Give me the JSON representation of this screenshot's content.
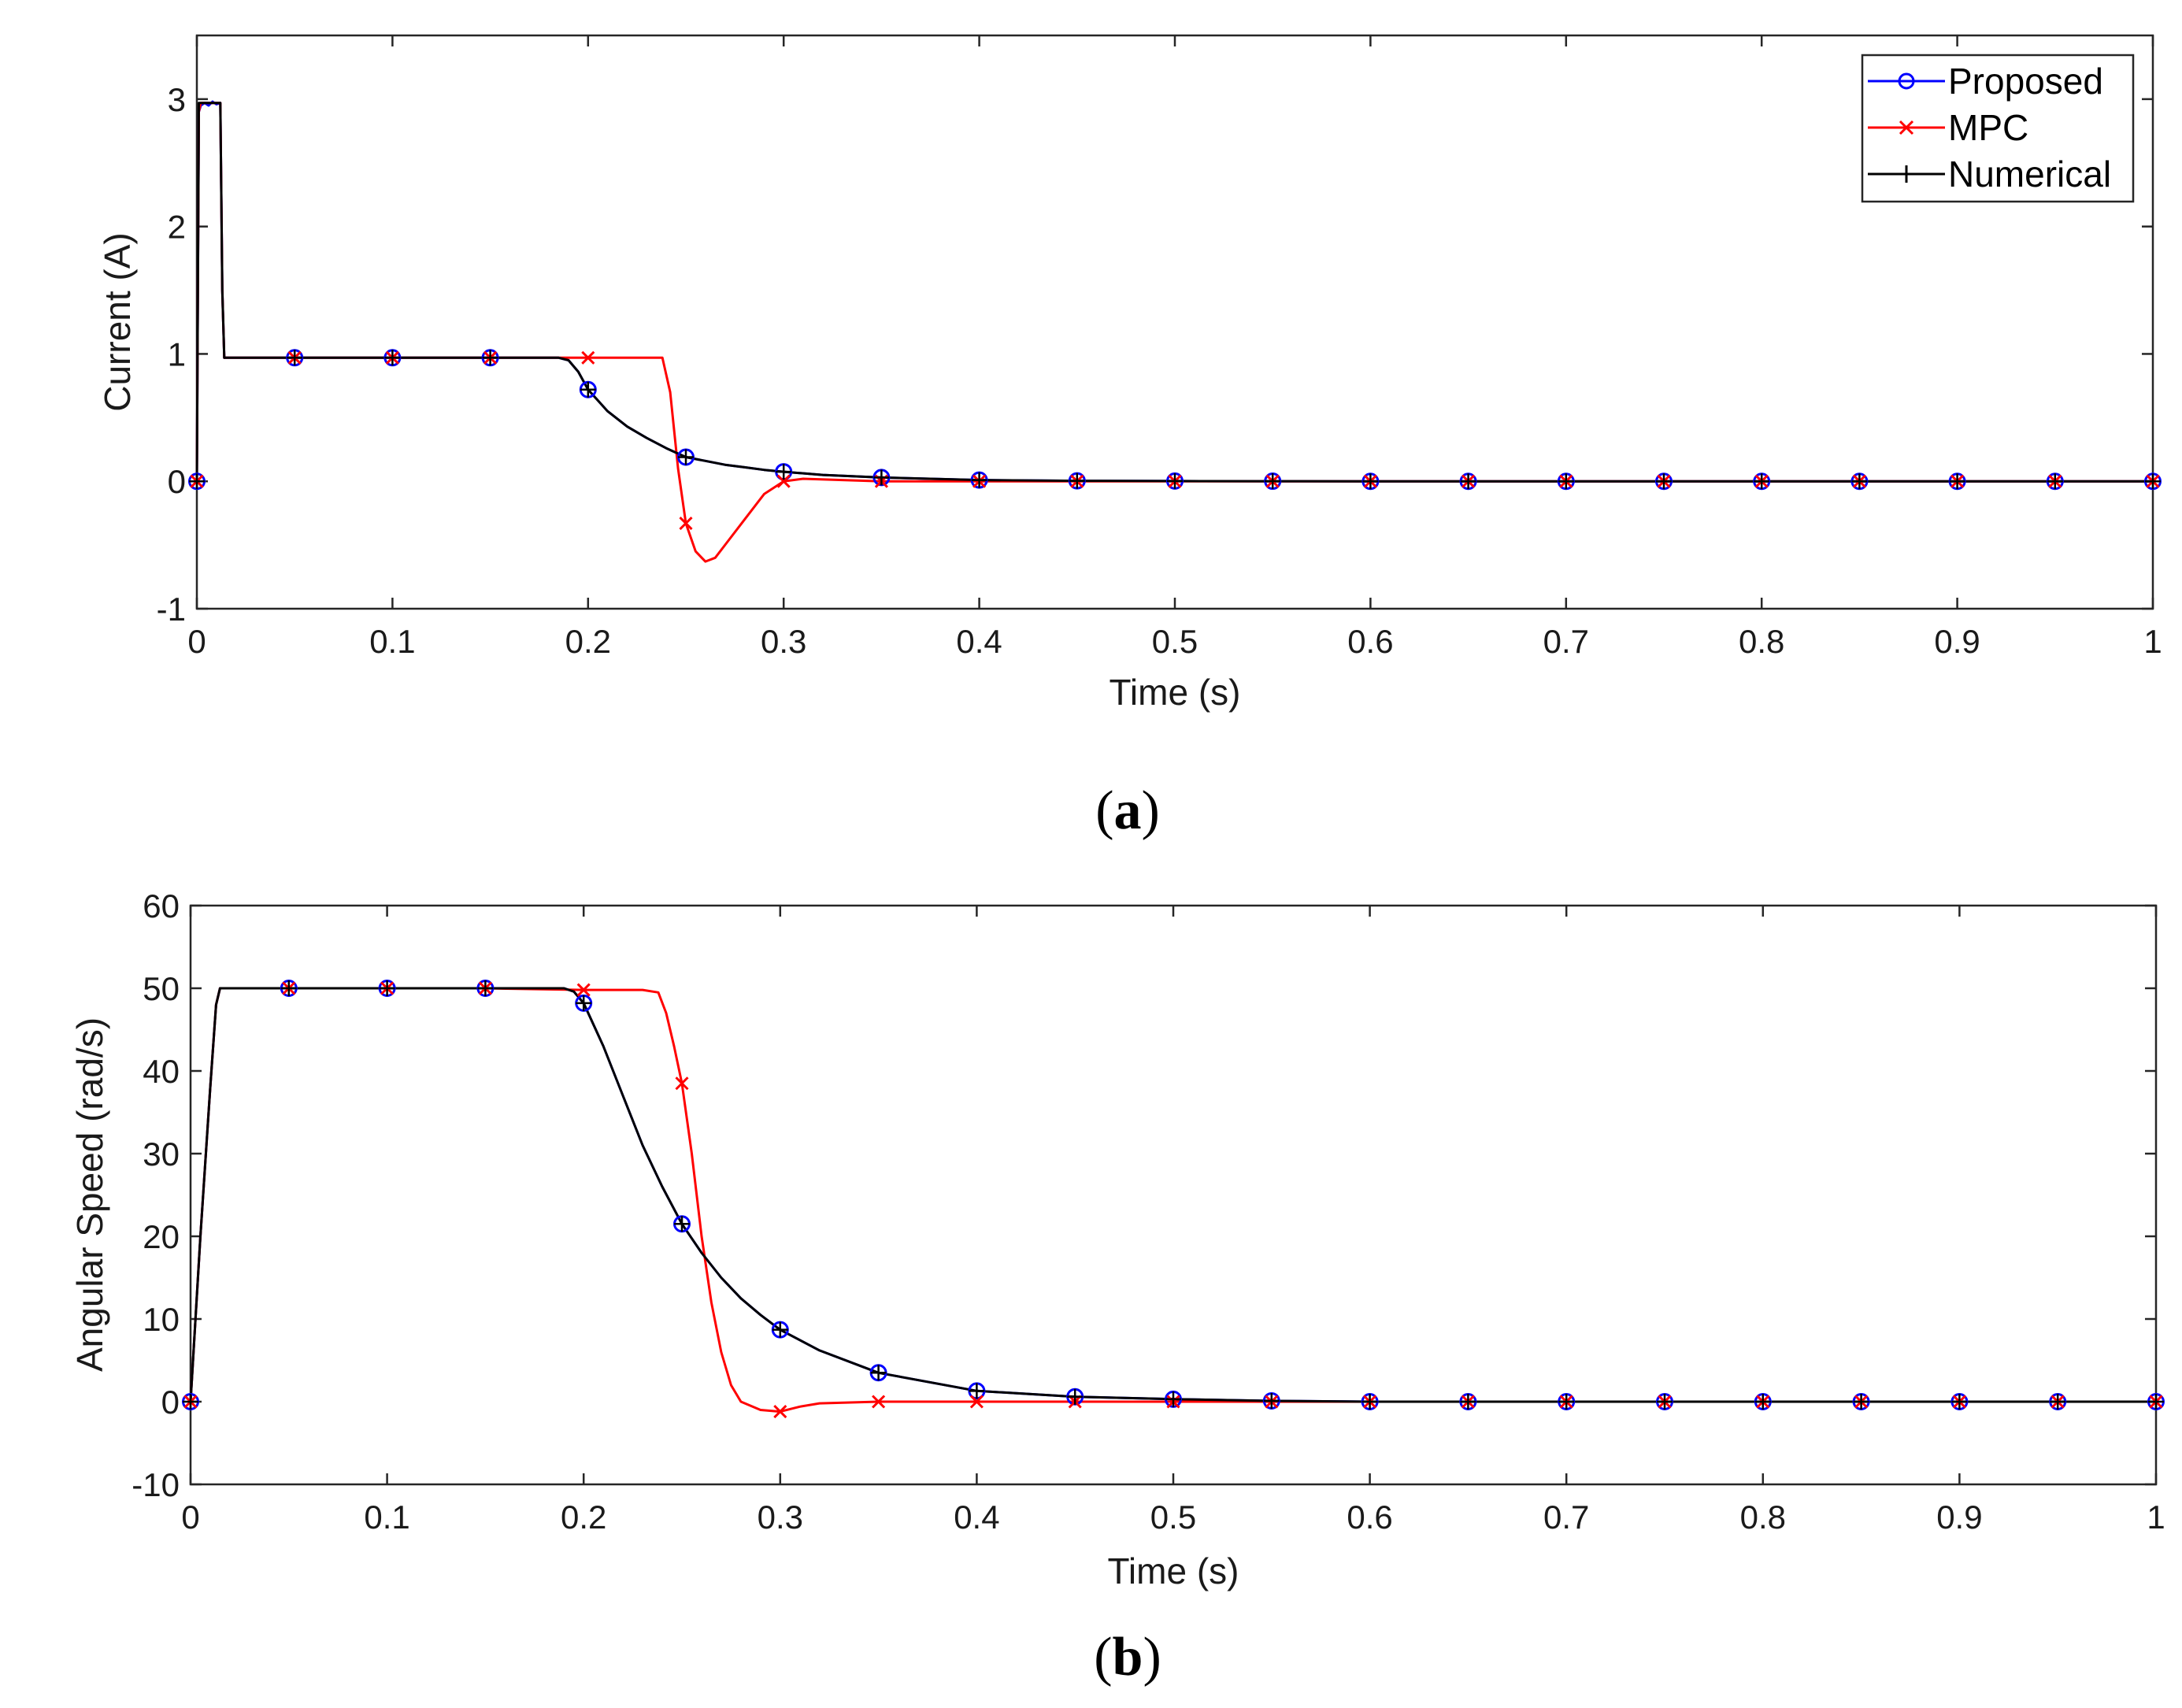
{
  "chart_data": [
    {
      "type": "line",
      "panel": "a",
      "caption_letter": "a",
      "xlabel": "Time (s)",
      "ylabel": "Current (A)",
      "xlim": [
        0,
        1
      ],
      "ylim": [
        -1,
        3.5
      ],
      "xticks": [
        0,
        0.1,
        0.2,
        0.3,
        0.4,
        0.5,
        0.6,
        0.7,
        0.8,
        0.9,
        1
      ],
      "xtick_labels": [
        "0",
        "0.1",
        "0.2",
        "0.3",
        "0.4",
        "0.5",
        "0.6",
        "0.7",
        "0.8",
        "0.9",
        "1"
      ],
      "yticks": [
        -1,
        0,
        1,
        2,
        3
      ],
      "ytick_labels": [
        "-1",
        "0",
        "1",
        "2",
        "3"
      ],
      "legend": {
        "position": "top-right",
        "entries": [
          "Proposed",
          "MPC",
          "Numerical"
        ]
      },
      "series": [
        {
          "name": "Proposed",
          "color": "#0000ff",
          "marker": "circle",
          "x": [
            0,
            0.001,
            0.002,
            0.004,
            0.006,
            0.008,
            0.01,
            0.012,
            0.013,
            0.014,
            0.05,
            0.1,
            0.15,
            0.185,
            0.19,
            0.195,
            0.2,
            0.21,
            0.22,
            0.23,
            0.24,
            0.25,
            0.26,
            0.27,
            0.28,
            0.29,
            0.3,
            0.32,
            0.35,
            0.4,
            0.45,
            0.5,
            0.55,
            0.6,
            0.65,
            0.7,
            0.75,
            0.8,
            0.85,
            0.9,
            0.95,
            1.0
          ],
          "y": [
            0,
            2.9,
            2.95,
            2.97,
            2.95,
            2.98,
            2.96,
            2.97,
            1.5,
            0.97,
            0.97,
            0.97,
            0.97,
            0.97,
            0.95,
            0.86,
            0.72,
            0.55,
            0.43,
            0.34,
            0.26,
            0.19,
            0.16,
            0.13,
            0.11,
            0.09,
            0.075,
            0.05,
            0.03,
            0.01,
            0.004,
            0.002,
            0.001,
            0,
            0,
            0,
            0,
            0,
            0,
            0,
            0,
            0
          ]
        },
        {
          "name": "MPC",
          "color": "#ff0000",
          "marker": "x",
          "x": [
            0,
            0.001,
            0.002,
            0.004,
            0.006,
            0.008,
            0.01,
            0.012,
            0.013,
            0.014,
            0.05,
            0.1,
            0.15,
            0.2,
            0.22,
            0.238,
            0.242,
            0.246,
            0.25,
            0.255,
            0.26,
            0.265,
            0.27,
            0.28,
            0.29,
            0.3,
            0.31,
            0.35,
            0.4,
            0.45,
            0.5,
            0.55,
            0.6,
            0.65,
            0.7,
            0.75,
            0.8,
            0.85,
            0.9,
            0.95,
            1.0
          ],
          "y": [
            0,
            2.9,
            2.97,
            2.97,
            2.97,
            2.97,
            2.97,
            2.97,
            1.5,
            0.97,
            0.97,
            0.97,
            0.97,
            0.97,
            0.97,
            0.97,
            0.7,
            0.1,
            -0.33,
            -0.55,
            -0.63,
            -0.6,
            -0.5,
            -0.3,
            -0.1,
            0,
            0.02,
            0,
            0,
            0,
            0,
            0,
            0,
            0,
            0,
            0,
            0,
            0,
            0,
            0,
            0
          ]
        },
        {
          "name": "Numerical",
          "color": "#000000",
          "marker": "plus",
          "x": [
            0,
            0.001,
            0.002,
            0.004,
            0.006,
            0.008,
            0.01,
            0.012,
            0.013,
            0.014,
            0.05,
            0.1,
            0.15,
            0.185,
            0.19,
            0.195,
            0.2,
            0.21,
            0.22,
            0.23,
            0.24,
            0.25,
            0.26,
            0.27,
            0.28,
            0.29,
            0.3,
            0.32,
            0.35,
            0.4,
            0.45,
            0.5,
            0.55,
            0.6,
            0.65,
            0.7,
            0.75,
            0.8,
            0.85,
            0.9,
            0.95,
            1.0
          ],
          "y": [
            0,
            2.97,
            2.97,
            2.97,
            2.97,
            2.97,
            2.97,
            2.97,
            1.5,
            0.97,
            0.97,
            0.97,
            0.97,
            0.97,
            0.95,
            0.86,
            0.72,
            0.55,
            0.43,
            0.34,
            0.26,
            0.19,
            0.16,
            0.13,
            0.11,
            0.09,
            0.075,
            0.05,
            0.03,
            0.01,
            0.004,
            0.002,
            0.001,
            0,
            0,
            0,
            0,
            0,
            0,
            0,
            0,
            0
          ]
        }
      ],
      "markers": {
        "Proposed": {
          "x": [
            0,
            0.05,
            0.1,
            0.15,
            0.2,
            0.25,
            0.3,
            0.35,
            0.4,
            0.45,
            0.5,
            0.55,
            0.6,
            0.65,
            0.7,
            0.75,
            0.8,
            0.85,
            0.9,
            0.95,
            1.0
          ],
          "y": [
            0,
            0.97,
            0.97,
            0.97,
            0.72,
            0.19,
            0.075,
            0.03,
            0.01,
            0.004,
            0.002,
            0.001,
            0,
            0,
            0,
            0,
            0,
            0,
            0,
            0,
            0
          ]
        },
        "MPC": {
          "x": [
            0,
            0.05,
            0.1,
            0.15,
            0.2,
            0.25,
            0.3,
            0.35,
            0.4,
            0.45,
            0.5,
            0.55,
            0.6,
            0.65,
            0.7,
            0.75,
            0.8,
            0.85,
            0.9,
            0.95,
            1.0
          ],
          "y": [
            0,
            0.97,
            0.97,
            0.97,
            0.97,
            -0.33,
            0,
            0,
            0,
            0,
            0,
            0,
            0,
            0,
            0,
            0,
            0,
            0,
            0,
            0,
            0
          ]
        },
        "Numerical": {
          "x": [
            0,
            0.05,
            0.1,
            0.15,
            0.2,
            0.25,
            0.3,
            0.35,
            0.4,
            0.45,
            0.5,
            0.55,
            0.6,
            0.65,
            0.7,
            0.75,
            0.8,
            0.85,
            0.9,
            0.95,
            1.0
          ],
          "y": [
            0,
            0.97,
            0.97,
            0.97,
            0.72,
            0.19,
            0.075,
            0.03,
            0.01,
            0.004,
            0.002,
            0.001,
            0,
            0,
            0,
            0,
            0,
            0,
            0,
            0,
            0
          ]
        }
      }
    },
    {
      "type": "line",
      "panel": "b",
      "caption_letter": "b",
      "xlabel": "Time (s)",
      "ylabel": "Angular Speed (rad/s)",
      "xlim": [
        0,
        1
      ],
      "ylim": [
        -10,
        60
      ],
      "xticks": [
        0,
        0.1,
        0.2,
        0.3,
        0.4,
        0.5,
        0.6,
        0.7,
        0.8,
        0.9,
        1
      ],
      "xtick_labels": [
        "0",
        "0.1",
        "0.2",
        "0.3",
        "0.4",
        "0.5",
        "0.6",
        "0.7",
        "0.8",
        "0.9",
        "1"
      ],
      "yticks": [
        -10,
        0,
        10,
        20,
        30,
        40,
        50,
        60
      ],
      "ytick_labels": [
        "-10",
        "0",
        "10",
        "20",
        "30",
        "40",
        "50",
        "60"
      ],
      "series": [
        {
          "name": "Proposed",
          "color": "#0000ff",
          "marker": "circle",
          "x": [
            0,
            0.005,
            0.01,
            0.013,
            0.015,
            0.05,
            0.1,
            0.15,
            0.19,
            0.195,
            0.2,
            0.21,
            0.22,
            0.23,
            0.24,
            0.25,
            0.26,
            0.27,
            0.28,
            0.29,
            0.3,
            0.32,
            0.35,
            0.4,
            0.45,
            0.5,
            0.55,
            0.6,
            0.65,
            0.7,
            0.75,
            0.8,
            0.85,
            0.9,
            0.95,
            1.0
          ],
          "y": [
            0,
            20,
            38,
            48,
            50,
            50,
            50,
            50,
            50,
            49.6,
            48.2,
            43,
            37,
            31,
            26,
            21.5,
            18,
            15,
            12.5,
            10.5,
            8.7,
            6.2,
            3.5,
            1.3,
            0.6,
            0.3,
            0.1,
            0,
            0,
            0,
            0,
            0,
            0,
            0,
            0,
            0
          ]
        },
        {
          "name": "MPC",
          "color": "#ff0000",
          "marker": "x",
          "x": [
            0,
            0.005,
            0.01,
            0.013,
            0.015,
            0.05,
            0.1,
            0.15,
            0.2,
            0.23,
            0.238,
            0.242,
            0.246,
            0.25,
            0.255,
            0.26,
            0.265,
            0.27,
            0.275,
            0.28,
            0.29,
            0.3,
            0.31,
            0.32,
            0.35,
            0.4,
            0.45,
            0.5,
            0.55,
            0.6,
            0.65,
            0.7,
            0.75,
            0.8,
            0.85,
            0.9,
            0.95,
            1.0
          ],
          "y": [
            0,
            20,
            38,
            48,
            50,
            50,
            50,
            50,
            49.8,
            49.8,
            49.5,
            47,
            43,
            38.5,
            30,
            20,
            12,
            6,
            2,
            0,
            -1,
            -1.2,
            -0.6,
            -0.2,
            0,
            0,
            0,
            0,
            0,
            0,
            0,
            0,
            0,
            0,
            0,
            0,
            0,
            0
          ]
        },
        {
          "name": "Numerical",
          "color": "#000000",
          "marker": "plus",
          "x": [
            0,
            0.005,
            0.01,
            0.013,
            0.015,
            0.05,
            0.1,
            0.15,
            0.19,
            0.195,
            0.2,
            0.21,
            0.22,
            0.23,
            0.24,
            0.25,
            0.26,
            0.27,
            0.28,
            0.29,
            0.3,
            0.32,
            0.35,
            0.4,
            0.45,
            0.5,
            0.55,
            0.6,
            0.65,
            0.7,
            0.75,
            0.8,
            0.85,
            0.9,
            0.95,
            1.0
          ],
          "y": [
            0,
            20,
            38,
            48,
            50,
            50,
            50,
            50,
            50,
            49.6,
            48.2,
            43,
            37,
            31,
            26,
            21.5,
            18,
            15,
            12.5,
            10.5,
            8.7,
            6.2,
            3.5,
            1.3,
            0.6,
            0.3,
            0.1,
            0,
            0,
            0,
            0,
            0,
            0,
            0,
            0,
            0
          ]
        }
      ],
      "markers": {
        "Proposed": {
          "x": [
            0,
            0.05,
            0.1,
            0.15,
            0.2,
            0.25,
            0.3,
            0.35,
            0.4,
            0.45,
            0.5,
            0.55,
            0.6,
            0.65,
            0.7,
            0.75,
            0.8,
            0.85,
            0.9,
            0.95,
            1.0
          ],
          "y": [
            0,
            50,
            50,
            50,
            48.2,
            21.5,
            8.7,
            3.5,
            1.3,
            0.6,
            0.3,
            0.1,
            0,
            0,
            0,
            0,
            0,
            0,
            0,
            0,
            0
          ]
        },
        "MPC": {
          "x": [
            0,
            0.05,
            0.1,
            0.15,
            0.2,
            0.25,
            0.3,
            0.35,
            0.4,
            0.45,
            0.5,
            0.55,
            0.6,
            0.65,
            0.7,
            0.75,
            0.8,
            0.85,
            0.9,
            0.95,
            1.0
          ],
          "y": [
            0,
            50,
            50,
            50,
            49.8,
            38.5,
            -1.2,
            0,
            0,
            0,
            0,
            0,
            0,
            0,
            0,
            0,
            0,
            0,
            0,
            0,
            0
          ]
        },
        "Numerical": {
          "x": [
            0,
            0.05,
            0.1,
            0.15,
            0.2,
            0.25,
            0.3,
            0.35,
            0.4,
            0.45,
            0.5,
            0.55,
            0.6,
            0.65,
            0.7,
            0.75,
            0.8,
            0.85,
            0.9,
            0.95,
            1.0
          ],
          "y": [
            0,
            50,
            50,
            50,
            48.2,
            21.5,
            8.7,
            3.5,
            1.3,
            0.6,
            0.3,
            0.1,
            0,
            0,
            0,
            0,
            0,
            0,
            0,
            0,
            0
          ]
        }
      }
    }
  ]
}
